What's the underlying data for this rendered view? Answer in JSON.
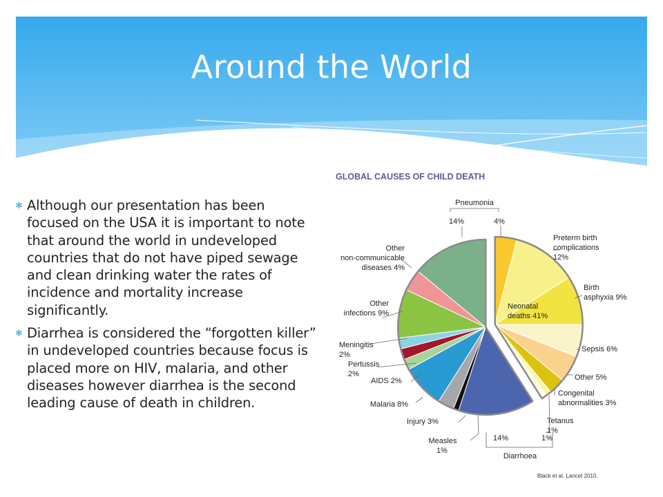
{
  "slide": {
    "title": "Around the World",
    "bullets": [
      "Although our presentation has been focused on the USA it is important to note that around the world in undeveloped countries that do not have piped sewage and clean drinking water the rates of incidence and mortality increase significantly.",
      "Diarrhea is considered the “forgotten killer” in undeveloped countries because focus is placed more on HIV, malaria, and other diseases however diarrhea is the second leading cause of death in children."
    ],
    "bullet_icon": "asterisk-icon",
    "colors": {
      "banner_top": "#35a9ec",
      "banner_bottom": "#82cdf6",
      "bullet": "#6bb7df",
      "chart_title": "#5a5a9c"
    }
  },
  "chart_data": {
    "type": "pie",
    "title": "GLOBAL CAUSES OF CHILD DEATH",
    "source": "Black et al. Lancet 2010.",
    "unit": "%",
    "slices": [
      {
        "label": "Pneumonia (neonatal)",
        "value": 4,
        "color": "#f9c82e"
      },
      {
        "label": "Preterm birth complications",
        "value": 12,
        "color": "#f8f08b"
      },
      {
        "label": "Birth asphyxia",
        "value": 9,
        "color": "#f1e342"
      },
      {
        "label": "Sepsis",
        "value": 6,
        "color": "#fbf4c9"
      },
      {
        "label": "Other",
        "value": 5,
        "color": "#fad28d"
      },
      {
        "label": "Congenital abnormalities",
        "value": 3,
        "color": "#ddc210"
      },
      {
        "label": "Tetanus",
        "value": 1,
        "color": "#fbf6a8"
      },
      {
        "label": "Diarrhoea (neonatal)",
        "value": 1,
        "color": "#fefde8"
      },
      {
        "label": "Diarrhoea",
        "value": 14,
        "color": "#4b65af"
      },
      {
        "label": "Measles",
        "value": 1,
        "color": "#111111"
      },
      {
        "label": "Injury",
        "value": 3,
        "color": "#a5a7aa"
      },
      {
        "label": "Malaria",
        "value": 8,
        "color": "#2a9ad3"
      },
      {
        "label": "AIDS",
        "value": 2,
        "color": "#a8d49a"
      },
      {
        "label": "Pertussis",
        "value": 2,
        "color": "#a3172a"
      },
      {
        "label": "Meningitis",
        "value": 2,
        "color": "#8cd3e4"
      },
      {
        "label": "Other infections",
        "value": 9,
        "color": "#8bc443"
      },
      {
        "label": "Other non-communicable diseases",
        "value": 4,
        "color": "#f09596"
      },
      {
        "label": "Pneumonia",
        "value": 14,
        "color": "#7bb08a"
      }
    ],
    "neonatal_label": [
      "Neonatal",
      "deaths 41%"
    ],
    "labels": {
      "pneumonia_group": "Pneumonia",
      "pneumonia_14": "14%",
      "pneumonia_4": "4%",
      "preterm": [
        "Preterm birth",
        "complications",
        "12%"
      ],
      "asphyxia": [
        "Birth",
        "asphyxia 9%"
      ],
      "sepsis": "Sepsis 6%",
      "other5": "Other 5%",
      "congenital": [
        "Congenital",
        "abnormalities 3%"
      ],
      "tetanus": [
        "Tetanus",
        "1%"
      ],
      "diarrhoea_group": "Diarrhoea",
      "diarrhoea_14": "14%",
      "diarrhoea_1": "1%",
      "measles": [
        "Measles",
        "1%"
      ],
      "injury": "Injury 3%",
      "malaria": "Malaria 8%",
      "aids": "AIDS 2%",
      "pertussis": [
        "Pertussis",
        "2%"
      ],
      "meningitis": [
        "Meningitis",
        "2%"
      ],
      "other_infections": [
        "Other",
        "infections 9%"
      ],
      "other_ncd": [
        "Other",
        "non-communicable",
        "diseases 4%"
      ]
    }
  }
}
